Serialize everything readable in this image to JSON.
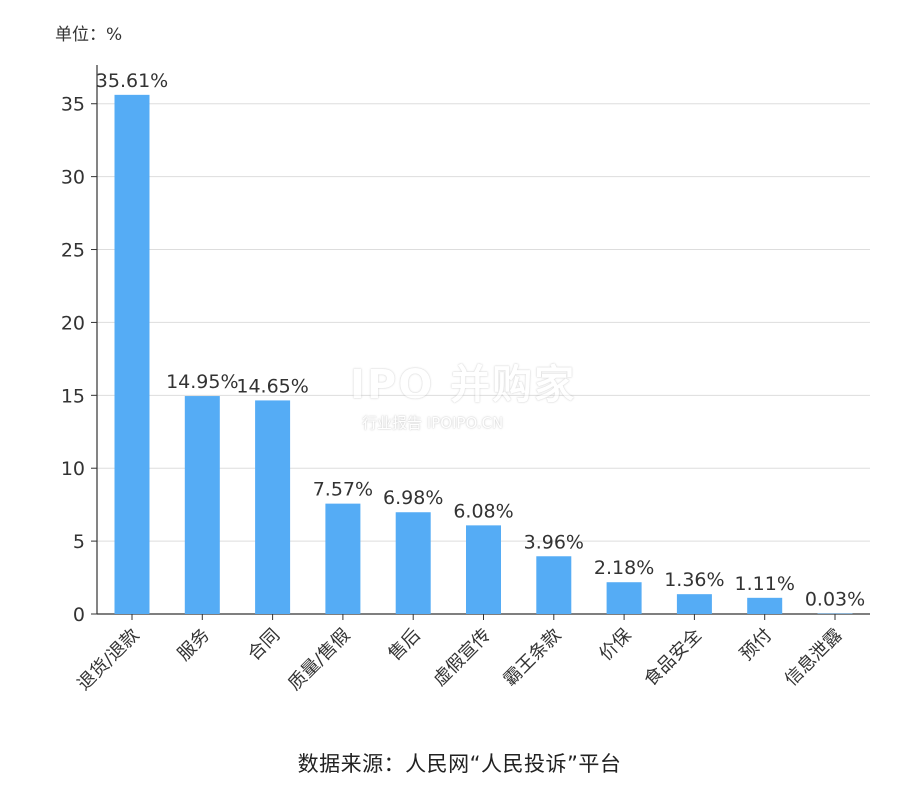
{
  "unit_label": "单位：%",
  "source_note": "数据来源：人民网“人民投诉”平台",
  "watermark": {
    "brand": "IPO 并购家",
    "sub": "行业报告 IPOIPO.CN"
  },
  "colors": {
    "bar": "#55acf5",
    "grid": "#dddddd",
    "axis": "#333333",
    "text": "#333333"
  },
  "chart_data": {
    "type": "bar",
    "title": "",
    "xlabel": "",
    "ylabel": "单位：%",
    "ylim": [
      0,
      38
    ],
    "yticks": [
      0,
      5,
      10,
      15,
      20,
      25,
      30,
      35
    ],
    "grid": true,
    "categories": [
      "退货/退款",
      "服务",
      "合同",
      "质量/售假",
      "售后",
      "虚假宣传",
      "霸王条款",
      "价保",
      "食品安全",
      "预付",
      "信息泄露"
    ],
    "values": [
      35.61,
      14.95,
      14.65,
      7.57,
      6.98,
      6.08,
      3.96,
      2.18,
      1.36,
      1.11,
      0.03
    ],
    "value_labels": [
      "35.61%",
      "14.95%",
      "14.65%",
      "7.57%",
      "6.98%",
      "6.08%",
      "3.96%",
      "2.18%",
      "1.36%",
      "1.11%",
      "0.03%"
    ]
  }
}
